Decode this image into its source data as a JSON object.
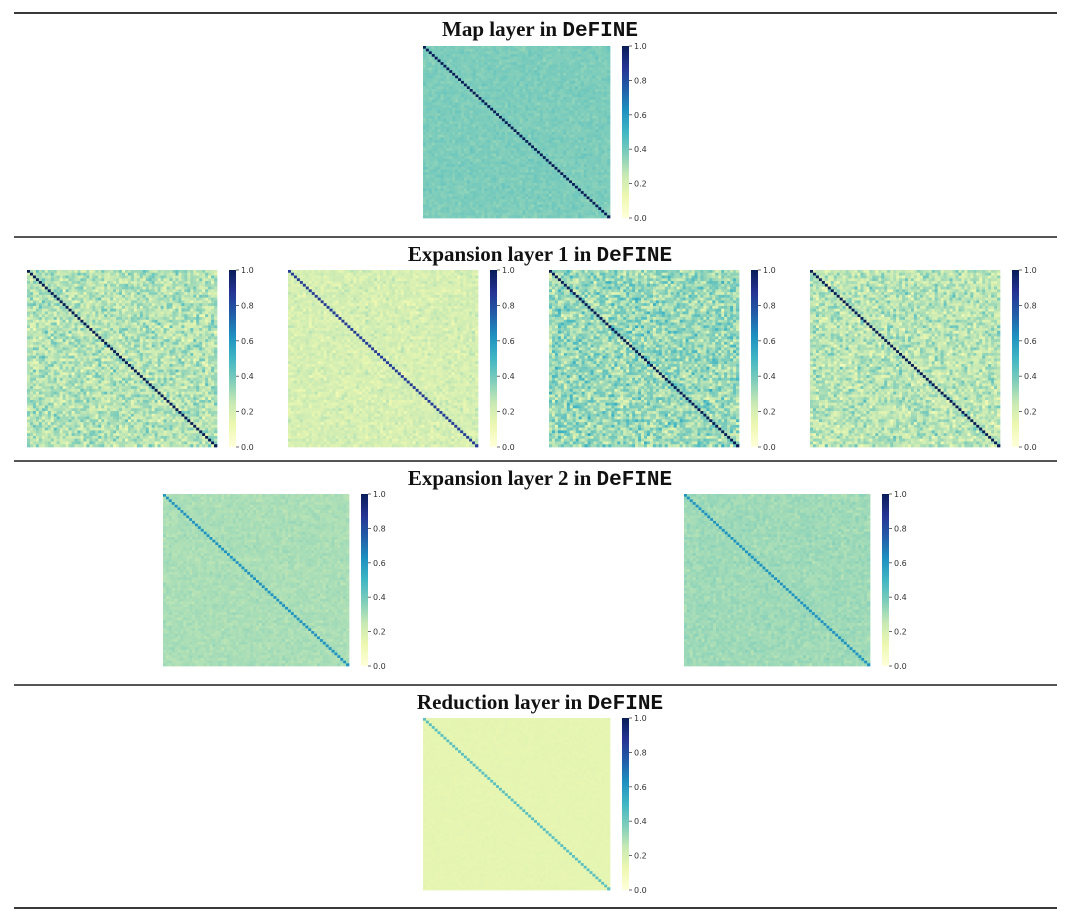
{
  "colormap": {
    "name": "YlGnBu",
    "stops": [
      "#ffffd9",
      "#edf8b1",
      "#c7e9b4",
      "#7fcdbb",
      "#41b6c4",
      "#1d91c0",
      "#225ea8",
      "#253494",
      "#081d58"
    ]
  },
  "colorbar": {
    "range": [
      0.0,
      1.0
    ],
    "ticks": [
      "0.0",
      "0.2",
      "0.4",
      "0.6",
      "0.8",
      "1.0"
    ]
  },
  "sections": [
    {
      "title_prefix": "Map layer in ",
      "title_model": "DeFINE"
    },
    {
      "title_prefix": "Expansion layer 1 in ",
      "title_model": "DeFINE"
    },
    {
      "title_prefix": "Expansion layer 2 in ",
      "title_model": "DeFINE"
    },
    {
      "title_prefix": "Reduction layer in ",
      "title_model": "DeFINE"
    }
  ],
  "chart_data": [
    {
      "type": "heatmap",
      "section": "Map layer in DeFINE",
      "matrix_size": 64,
      "diagonal_value": 1.0,
      "off_diagonal_mean": 0.38,
      "off_diagonal_noise": 0.03,
      "vmin": 0.0,
      "vmax": 1.0,
      "colorbar_ticks": [
        0.0,
        0.2,
        0.4,
        0.6,
        0.8,
        1.0
      ]
    },
    {
      "type": "heatmap",
      "section": "Expansion layer 1 in DeFINE",
      "matrix_size": 64,
      "diagonal_value": 1.0,
      "off_diagonal_mean": 0.28,
      "off_diagonal_noise": 0.12,
      "vmin": 0.0,
      "vmax": 1.0,
      "colorbar_ticks": [
        0.0,
        0.2,
        0.4,
        0.6,
        0.8,
        1.0
      ]
    },
    {
      "type": "heatmap",
      "section": "Expansion layer 1 in DeFINE",
      "matrix_size": 64,
      "diagonal_value": 0.85,
      "off_diagonal_mean": 0.2,
      "off_diagonal_noise": 0.06,
      "vmin": 0.0,
      "vmax": 1.0,
      "colorbar_ticks": [
        0.0,
        0.2,
        0.4,
        0.6,
        0.8,
        1.0
      ]
    },
    {
      "type": "heatmap",
      "section": "Expansion layer 1 in DeFINE",
      "matrix_size": 64,
      "diagonal_value": 1.0,
      "off_diagonal_mean": 0.33,
      "off_diagonal_noise": 0.14,
      "vmin": 0.0,
      "vmax": 1.0,
      "colorbar_ticks": [
        0.0,
        0.2,
        0.4,
        0.6,
        0.8,
        1.0
      ]
    },
    {
      "type": "heatmap",
      "section": "Expansion layer 1 in DeFINE",
      "matrix_size": 64,
      "diagonal_value": 1.0,
      "off_diagonal_mean": 0.27,
      "off_diagonal_noise": 0.12,
      "vmin": 0.0,
      "vmax": 1.0,
      "colorbar_ticks": [
        0.0,
        0.2,
        0.4,
        0.6,
        0.8,
        1.0
      ]
    },
    {
      "type": "heatmap",
      "section": "Expansion layer 2 in DeFINE",
      "matrix_size": 64,
      "diagonal_value": 0.62,
      "off_diagonal_mean": 0.3,
      "off_diagonal_noise": 0.025,
      "vmin": 0.0,
      "vmax": 1.0,
      "colorbar_ticks": [
        0.0,
        0.2,
        0.4,
        0.6,
        0.8,
        1.0
      ]
    },
    {
      "type": "heatmap",
      "section": "Expansion layer 2 in DeFINE",
      "matrix_size": 64,
      "diagonal_value": 0.62,
      "off_diagonal_mean": 0.32,
      "off_diagonal_noise": 0.03,
      "vmin": 0.0,
      "vmax": 1.0,
      "colorbar_ticks": [
        0.0,
        0.2,
        0.4,
        0.6,
        0.8,
        1.0
      ]
    },
    {
      "type": "heatmap",
      "section": "Reduction layer in DeFINE",
      "matrix_size": 64,
      "diagonal_value": 0.45,
      "off_diagonal_mean": 0.15,
      "off_diagonal_noise": 0.008,
      "vmin": 0.0,
      "vmax": 1.0,
      "colorbar_ticks": [
        0.0,
        0.2,
        0.4,
        0.6,
        0.8,
        1.0
      ]
    }
  ]
}
